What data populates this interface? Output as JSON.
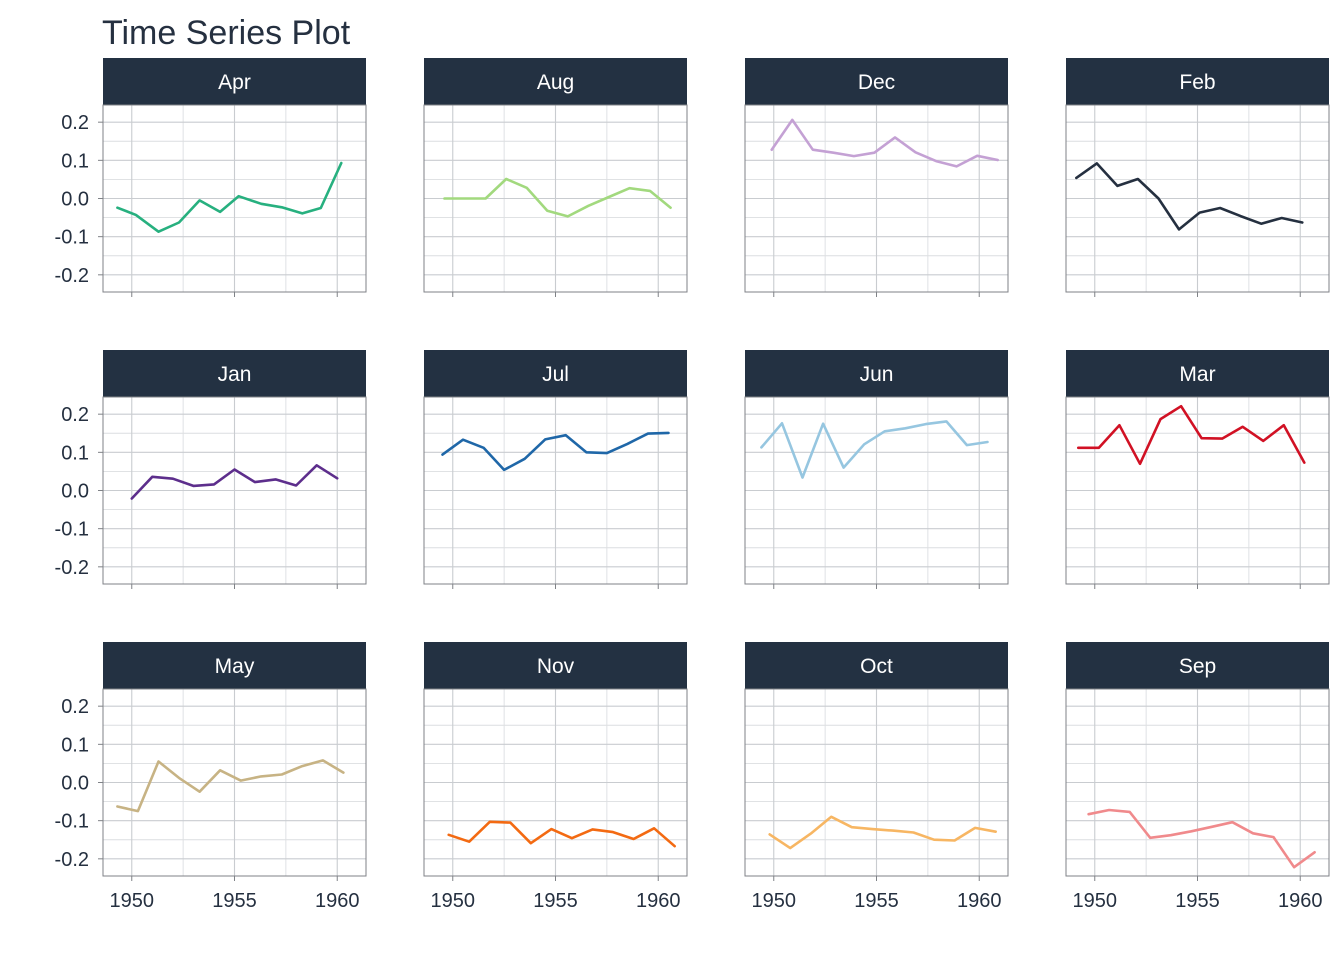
{
  "chart_data": {
    "type": "line",
    "title": "Time Series Plot",
    "xlabel": "",
    "ylabel": "",
    "layout": "facet-grid 3 rows x 4 columns",
    "x_ticks": [
      1950,
      1955,
      1960
    ],
    "y_ticks": [
      0.2,
      0.1,
      0.0,
      -0.1,
      -0.2
    ],
    "y_tick_labels": [
      "0.2",
      "0.1",
      "0.0",
      "-0.1",
      "-0.2"
    ],
    "xlim": [
      1948.6,
      1961.4
    ],
    "ylim": [
      -0.245,
      0.245
    ],
    "grid": true,
    "legend": "none",
    "strip_color": "#233142",
    "panels": [
      {
        "name": "Apr",
        "color": "#27b07f",
        "x": [
          1949.3,
          1950.2,
          1951.3,
          1952.3,
          1953.3,
          1954.3,
          1955.2,
          1956.3,
          1957.3,
          1958.3,
          1959.2,
          1960.2
        ],
        "y": [
          -0.024,
          -0.043,
          -0.087,
          -0.063,
          -0.005,
          -0.035,
          0.006,
          -0.014,
          -0.023,
          -0.039,
          -0.025,
          0.093
        ]
      },
      {
        "name": "Aug",
        "color": "#a2d97e",
        "x": [
          1949.6,
          1950.6,
          1951.6,
          1952.6,
          1953.6,
          1954.6,
          1955.6,
          1956.6,
          1957.6,
          1958.6,
          1959.6,
          1960.6
        ],
        "y": [
          0.0,
          0.0,
          0.0,
          0.051,
          0.028,
          -0.032,
          -0.047,
          -0.019,
          0.004,
          0.027,
          0.02,
          -0.024
        ]
      },
      {
        "name": "Dec",
        "color": "#c4a1d4",
        "x": [
          1949.9,
          1950.9,
          1951.9,
          1952.9,
          1953.9,
          1954.9,
          1955.9,
          1956.9,
          1957.9,
          1958.9,
          1959.9,
          1960.9
        ],
        "y": [
          0.128,
          0.206,
          0.128,
          0.12,
          0.111,
          0.12,
          0.16,
          0.121,
          0.098,
          0.084,
          0.112,
          0.101
        ]
      },
      {
        "name": "Feb",
        "color": "#253040",
        "x": [
          1949.1,
          1950.1,
          1951.1,
          1952.1,
          1953.1,
          1954.1,
          1955.1,
          1956.1,
          1957.1,
          1958.1,
          1959.1,
          1960.1
        ],
        "y": [
          0.054,
          0.092,
          0.033,
          0.051,
          0.0,
          -0.081,
          -0.037,
          -0.025,
          -0.046,
          -0.066,
          -0.051,
          -0.063
        ]
      },
      {
        "name": "Jan",
        "color": "#5d2e8c",
        "x": [
          1950.0,
          1951.0,
          1952.0,
          1953.0,
          1954.0,
          1955.0,
          1956.0,
          1957.0,
          1958.0,
          1959.0,
          1960.0
        ],
        "y": [
          -0.021,
          0.036,
          0.031,
          0.012,
          0.016,
          0.055,
          0.022,
          0.029,
          0.013,
          0.066,
          0.032
        ]
      },
      {
        "name": "Jul",
        "color": "#1f67a8",
        "x": [
          1949.5,
          1950.5,
          1951.5,
          1952.5,
          1953.5,
          1954.5,
          1955.5,
          1956.5,
          1957.5,
          1958.5,
          1959.5,
          1960.5
        ],
        "y": [
          0.094,
          0.133,
          0.112,
          0.054,
          0.083,
          0.134,
          0.145,
          0.1,
          0.098,
          0.122,
          0.149,
          0.151
        ]
      },
      {
        "name": "Jun",
        "color": "#96c6e0",
        "x": [
          1949.4,
          1950.4,
          1951.4,
          1952.4,
          1953.4,
          1954.4,
          1955.4,
          1956.4,
          1957.4,
          1958.4,
          1959.4,
          1960.4
        ],
        "y": [
          0.113,
          0.176,
          0.034,
          0.175,
          0.06,
          0.121,
          0.155,
          0.163,
          0.174,
          0.181,
          0.119,
          0.127
        ]
      },
      {
        "name": "Mar",
        "color": "#d11124",
        "x": [
          1949.2,
          1950.2,
          1951.2,
          1952.2,
          1953.2,
          1954.2,
          1955.2,
          1956.2,
          1957.2,
          1958.2,
          1959.2,
          1960.2
        ],
        "y": [
          0.112,
          0.112,
          0.171,
          0.07,
          0.187,
          0.221,
          0.137,
          0.136,
          0.167,
          0.13,
          0.171,
          0.073
        ]
      },
      {
        "name": "May",
        "color": "#c7b384",
        "x": [
          1949.3,
          1950.3,
          1951.3,
          1952.3,
          1953.3,
          1954.3,
          1955.3,
          1956.3,
          1957.3,
          1958.3,
          1959.3,
          1960.3
        ],
        "y": [
          -0.063,
          -0.075,
          0.055,
          0.012,
          -0.024,
          0.032,
          0.005,
          0.016,
          0.021,
          0.043,
          0.058,
          0.026
        ]
      },
      {
        "name": "Nov",
        "color": "#f36a12",
        "x": [
          1949.8,
          1950.8,
          1951.8,
          1952.8,
          1953.8,
          1954.8,
          1955.8,
          1956.8,
          1957.8,
          1958.8,
          1959.8,
          1960.8
        ],
        "y": [
          -0.137,
          -0.155,
          -0.103,
          -0.105,
          -0.159,
          -0.122,
          -0.146,
          -0.123,
          -0.13,
          -0.148,
          -0.12,
          -0.167
        ]
      },
      {
        "name": "Oct",
        "color": "#f7b663",
        "x": [
          1949.8,
          1950.8,
          1951.8,
          1952.8,
          1953.8,
          1954.8,
          1955.8,
          1956.8,
          1957.8,
          1958.8,
          1959.8,
          1960.8
        ],
        "y": [
          -0.136,
          -0.172,
          -0.134,
          -0.09,
          -0.117,
          -0.122,
          -0.126,
          -0.131,
          -0.15,
          -0.152,
          -0.119,
          -0.129
        ]
      },
      {
        "name": "Sep",
        "color": "#f08a8c",
        "x": [
          1949.7,
          1950.7,
          1951.7,
          1952.7,
          1953.7,
          1954.7,
          1955.7,
          1956.7,
          1957.7,
          1958.7,
          1959.7,
          1960.7
        ],
        "y": [
          -0.083,
          -0.072,
          -0.077,
          -0.145,
          -0.138,
          -0.128,
          -0.116,
          -0.104,
          -0.133,
          -0.143,
          -0.222,
          -0.183
        ]
      }
    ]
  },
  "title_extra": ""
}
